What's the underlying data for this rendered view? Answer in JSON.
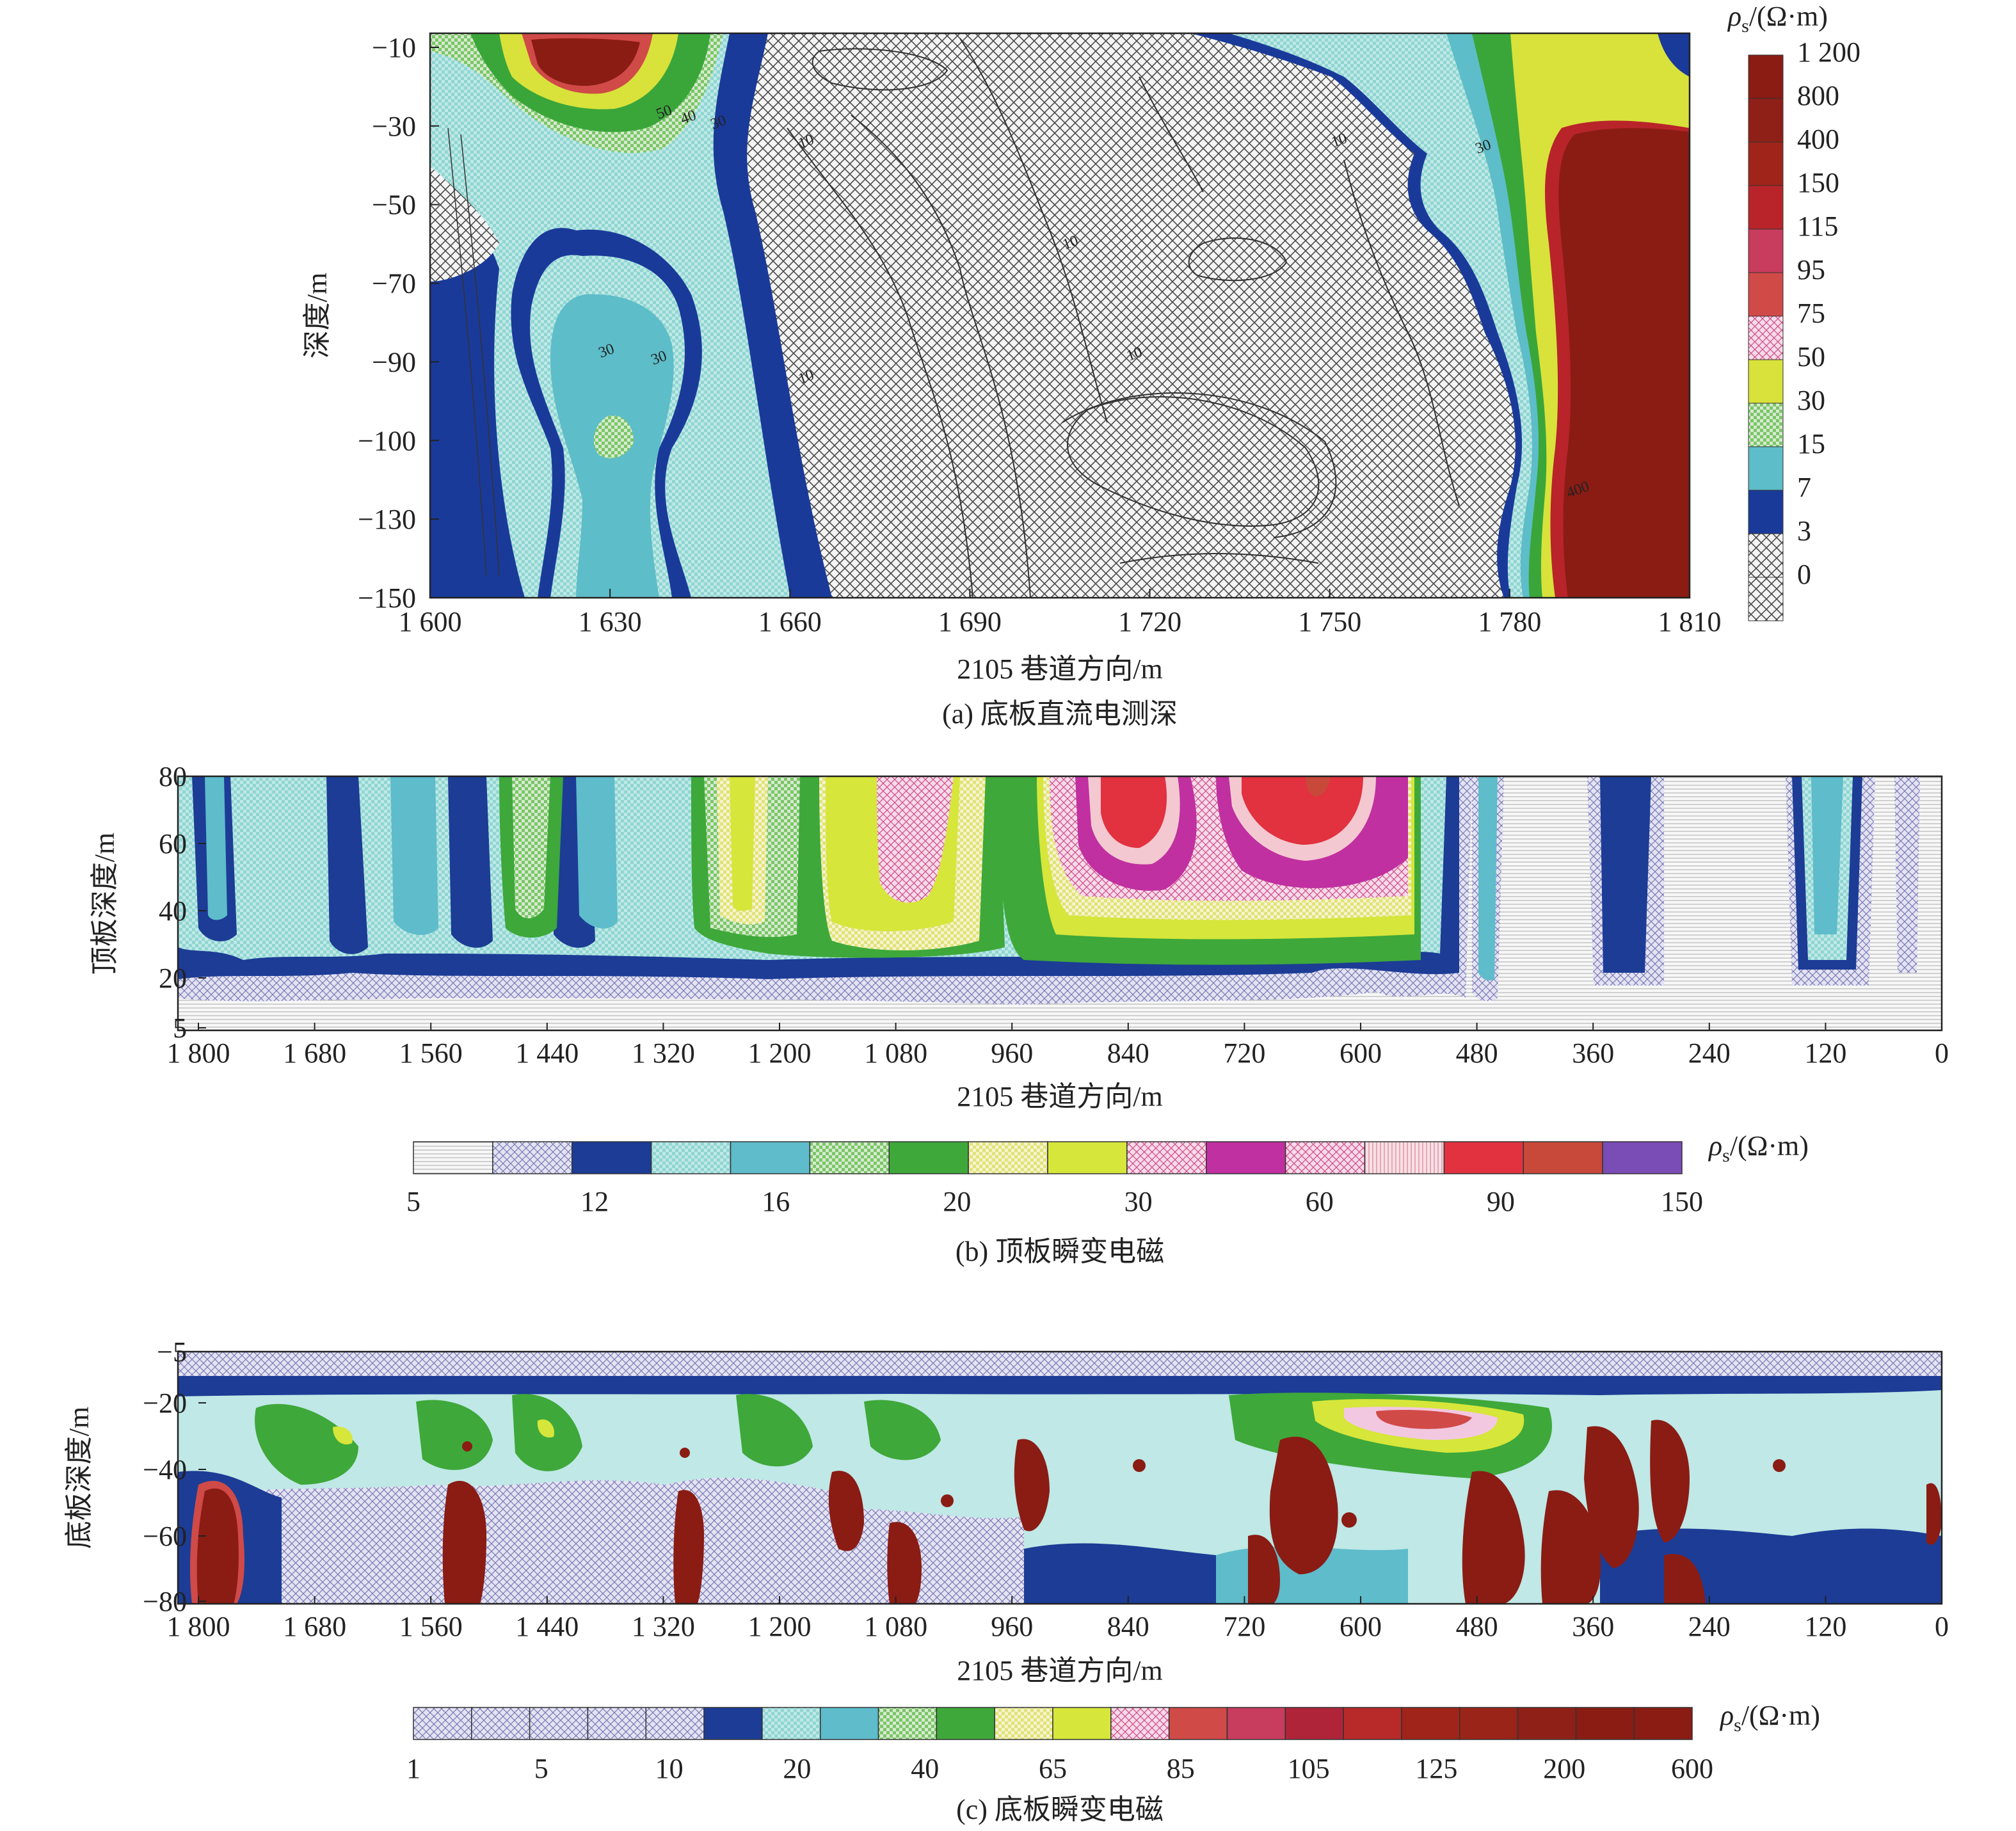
{
  "chart_data": [
    {
      "type": "heatmap",
      "title": "",
      "caption": "(a) 底板直流电测深",
      "xlabel": "2105 巷道方向/m",
      "ylabel": "深度/m",
      "x_ticks": [
        "1 600",
        "1 630",
        "1 660",
        "1 690",
        "1 720",
        "1 750",
        "1 780",
        "1 810"
      ],
      "y_ticks": [
        "−10",
        "−30",
        "−50",
        "−70",
        "−90",
        "−100",
        "−130",
        "−150"
      ],
      "xlim": [
        1600,
        1810
      ],
      "colorbar": {
        "label_sym": "ρ",
        "label_sub": "s",
        "label_unit": "/(Ω·m)",
        "orientation": "vertical",
        "levels": [
          "1 200",
          "800",
          "400",
          "150",
          "115",
          "95",
          "75",
          "50",
          "30",
          "15",
          "7",
          "3",
          "0"
        ],
        "colors": [
          "#8a1c14",
          "#8f2018",
          "#a02419",
          "#b8242a",
          "#c83c5e",
          "#d04a48",
          "#f4d6dc",
          "#d8e23a",
          "#3aa63a",
          "#5dbdc8",
          "#1a3a9a",
          "#e6e6e6",
          "#e6e6e6"
        ]
      },
      "contour_labels": [
        "50",
        "40",
        "30",
        "10",
        "10",
        "10",
        "10",
        "10",
        "30",
        "30",
        "30",
        "400"
      ]
    },
    {
      "type": "heatmap",
      "title": "",
      "caption": "(b) 顶板瞬变电磁",
      "xlabel": "2105 巷道方向/m",
      "ylabel": "顶板深度/m",
      "x_ticks": [
        "1 800",
        "1 680",
        "1 560",
        "1 440",
        "1 320",
        "1 200",
        "1 080",
        "960",
        "840",
        "720",
        "600",
        "480",
        "360",
        "240",
        "120",
        "0"
      ],
      "y_ticks": [
        "80",
        "60",
        "40",
        "20",
        "5"
      ],
      "xlim": [
        1800,
        0
      ],
      "ylim": [
        5,
        80
      ],
      "colorbar": {
        "label_sym": "ρ",
        "label_sub": "s",
        "label_unit": "/(Ω·m)",
        "orientation": "horizontal",
        "tick_labels": [
          "5",
          "12",
          "16",
          "20",
          "30",
          "60",
          "90",
          "150"
        ],
        "colors": [
          "#f2f2f2",
          "#c8cce6",
          "#1c3c96",
          "#bfe8e8",
          "#5ebccb",
          "#bfe6bf",
          "#3ea83a",
          "#f2f2c0",
          "#d6e63a",
          "#f2c8e0",
          "#c030a0",
          "#f4c8d0",
          "#f6dde3",
          "#e2313f",
          "#c8483a",
          "#7a4cb6"
        ]
      }
    },
    {
      "type": "heatmap",
      "title": "",
      "caption": "(c) 底板瞬变电磁",
      "xlabel": "2105 巷道方向/m",
      "ylabel": "底板深度/m",
      "x_ticks": [
        "1 800",
        "1 680",
        "1 560",
        "1 440",
        "1 320",
        "1 200",
        "1 080",
        "960",
        "840",
        "720",
        "600",
        "480",
        "360",
        "240",
        "120",
        "0"
      ],
      "y_ticks": [
        "−5",
        "−20",
        "−40",
        "−60",
        "−80"
      ],
      "xlim": [
        1800,
        0
      ],
      "ylim": [
        -80,
        -5
      ],
      "colorbar": {
        "label_sym": "ρ",
        "label_sub": "s",
        "label_unit": "/(Ω·m)",
        "orientation": "horizontal",
        "tick_labels": [
          "1",
          "5",
          "10",
          "20",
          "40",
          "65",
          "85",
          "105",
          "125",
          "200",
          "600"
        ],
        "colors": [
          "#dfe0ef",
          "#dfe0ef",
          "#dfe0ef",
          "#dfe0ef",
          "#dfe0ef",
          "#1c3c96",
          "#bfe8e8",
          "#5ebccb",
          "#bfe6bf",
          "#3ea83a",
          "#f2f2c0",
          "#d6e63a",
          "#f2c8e0",
          "#d04a48",
          "#c83c5e",
          "#b0243a",
          "#b82a2a",
          "#a02419",
          "#9a2418",
          "#8f2018",
          "#8a1c14",
          "#8a1c14"
        ]
      }
    }
  ]
}
